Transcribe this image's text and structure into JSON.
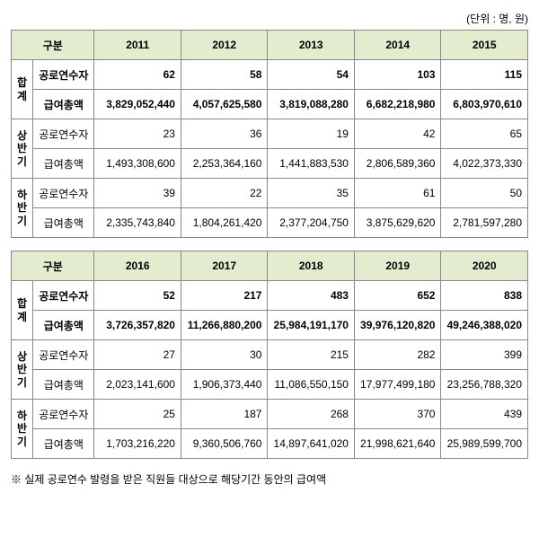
{
  "unit_text": "(단위 : 명, 원)",
  "header_gubun": "구분",
  "row_labels": {
    "hapgye": "합계",
    "sangbangi": "상반기",
    "habangi": "하반기",
    "gongro": "공로연수자",
    "geupyeo": "급여총액"
  },
  "tables": [
    {
      "years": [
        "2011",
        "2012",
        "2013",
        "2014",
        "2015"
      ],
      "rows": [
        {
          "cat": "hapgye",
          "sub": "gongro",
          "bold": true,
          "vals": [
            "62",
            "58",
            "54",
            "103",
            "115"
          ]
        },
        {
          "cat": "hapgye",
          "sub": "geupyeo",
          "bold": true,
          "vals": [
            "3,829,052,440",
            "4,057,625,580",
            "3,819,088,280",
            "6,682,218,980",
            "6,803,970,610"
          ]
        },
        {
          "cat": "sangbangi",
          "sub": "gongro",
          "bold": false,
          "vals": [
            "23",
            "36",
            "19",
            "42",
            "65"
          ]
        },
        {
          "cat": "sangbangi",
          "sub": "geupyeo",
          "bold": false,
          "vals": [
            "1,493,308,600",
            "2,253,364,160",
            "1,441,883,530",
            "2,806,589,360",
            "4,022,373,330"
          ]
        },
        {
          "cat": "habangi",
          "sub": "gongro",
          "bold": false,
          "vals": [
            "39",
            "22",
            "35",
            "61",
            "50"
          ]
        },
        {
          "cat": "habangi",
          "sub": "geupyeo",
          "bold": false,
          "vals": [
            "2,335,743,840",
            "1,804,261,420",
            "2,377,204,750",
            "3,875,629,620",
            "2,781,597,280"
          ]
        }
      ]
    },
    {
      "years": [
        "2016",
        "2017",
        "2018",
        "2019",
        "2020"
      ],
      "rows": [
        {
          "cat": "hapgye",
          "sub": "gongro",
          "bold": true,
          "vals": [
            "52",
            "217",
            "483",
            "652",
            "838"
          ]
        },
        {
          "cat": "hapgye",
          "sub": "geupyeo",
          "bold": true,
          "vals": [
            "3,726,357,820",
            "11,266,880,200",
            "25,984,191,170",
            "39,976,120,820",
            "49,246,388,020"
          ]
        },
        {
          "cat": "sangbangi",
          "sub": "gongro",
          "bold": false,
          "vals": [
            "27",
            "30",
            "215",
            "282",
            "399"
          ]
        },
        {
          "cat": "sangbangi",
          "sub": "geupyeo",
          "bold": false,
          "vals": [
            "2,023,141,600",
            "1,906,373,440",
            "11,086,550,150",
            "17,977,499,180",
            "23,256,788,320"
          ]
        },
        {
          "cat": "habangi",
          "sub": "gongro",
          "bold": false,
          "vals": [
            "25",
            "187",
            "268",
            "370",
            "439"
          ]
        },
        {
          "cat": "habangi",
          "sub": "geupyeo",
          "bold": false,
          "vals": [
            "1,703,216,220",
            "9,360,506,760",
            "14,897,641,020",
            "21,998,621,640",
            "25,989,599,700"
          ]
        }
      ]
    }
  ],
  "footnote": "※ 실제 공로연수 발령을 받은 직원들 대상으로 해당기간 동안의 급여액"
}
